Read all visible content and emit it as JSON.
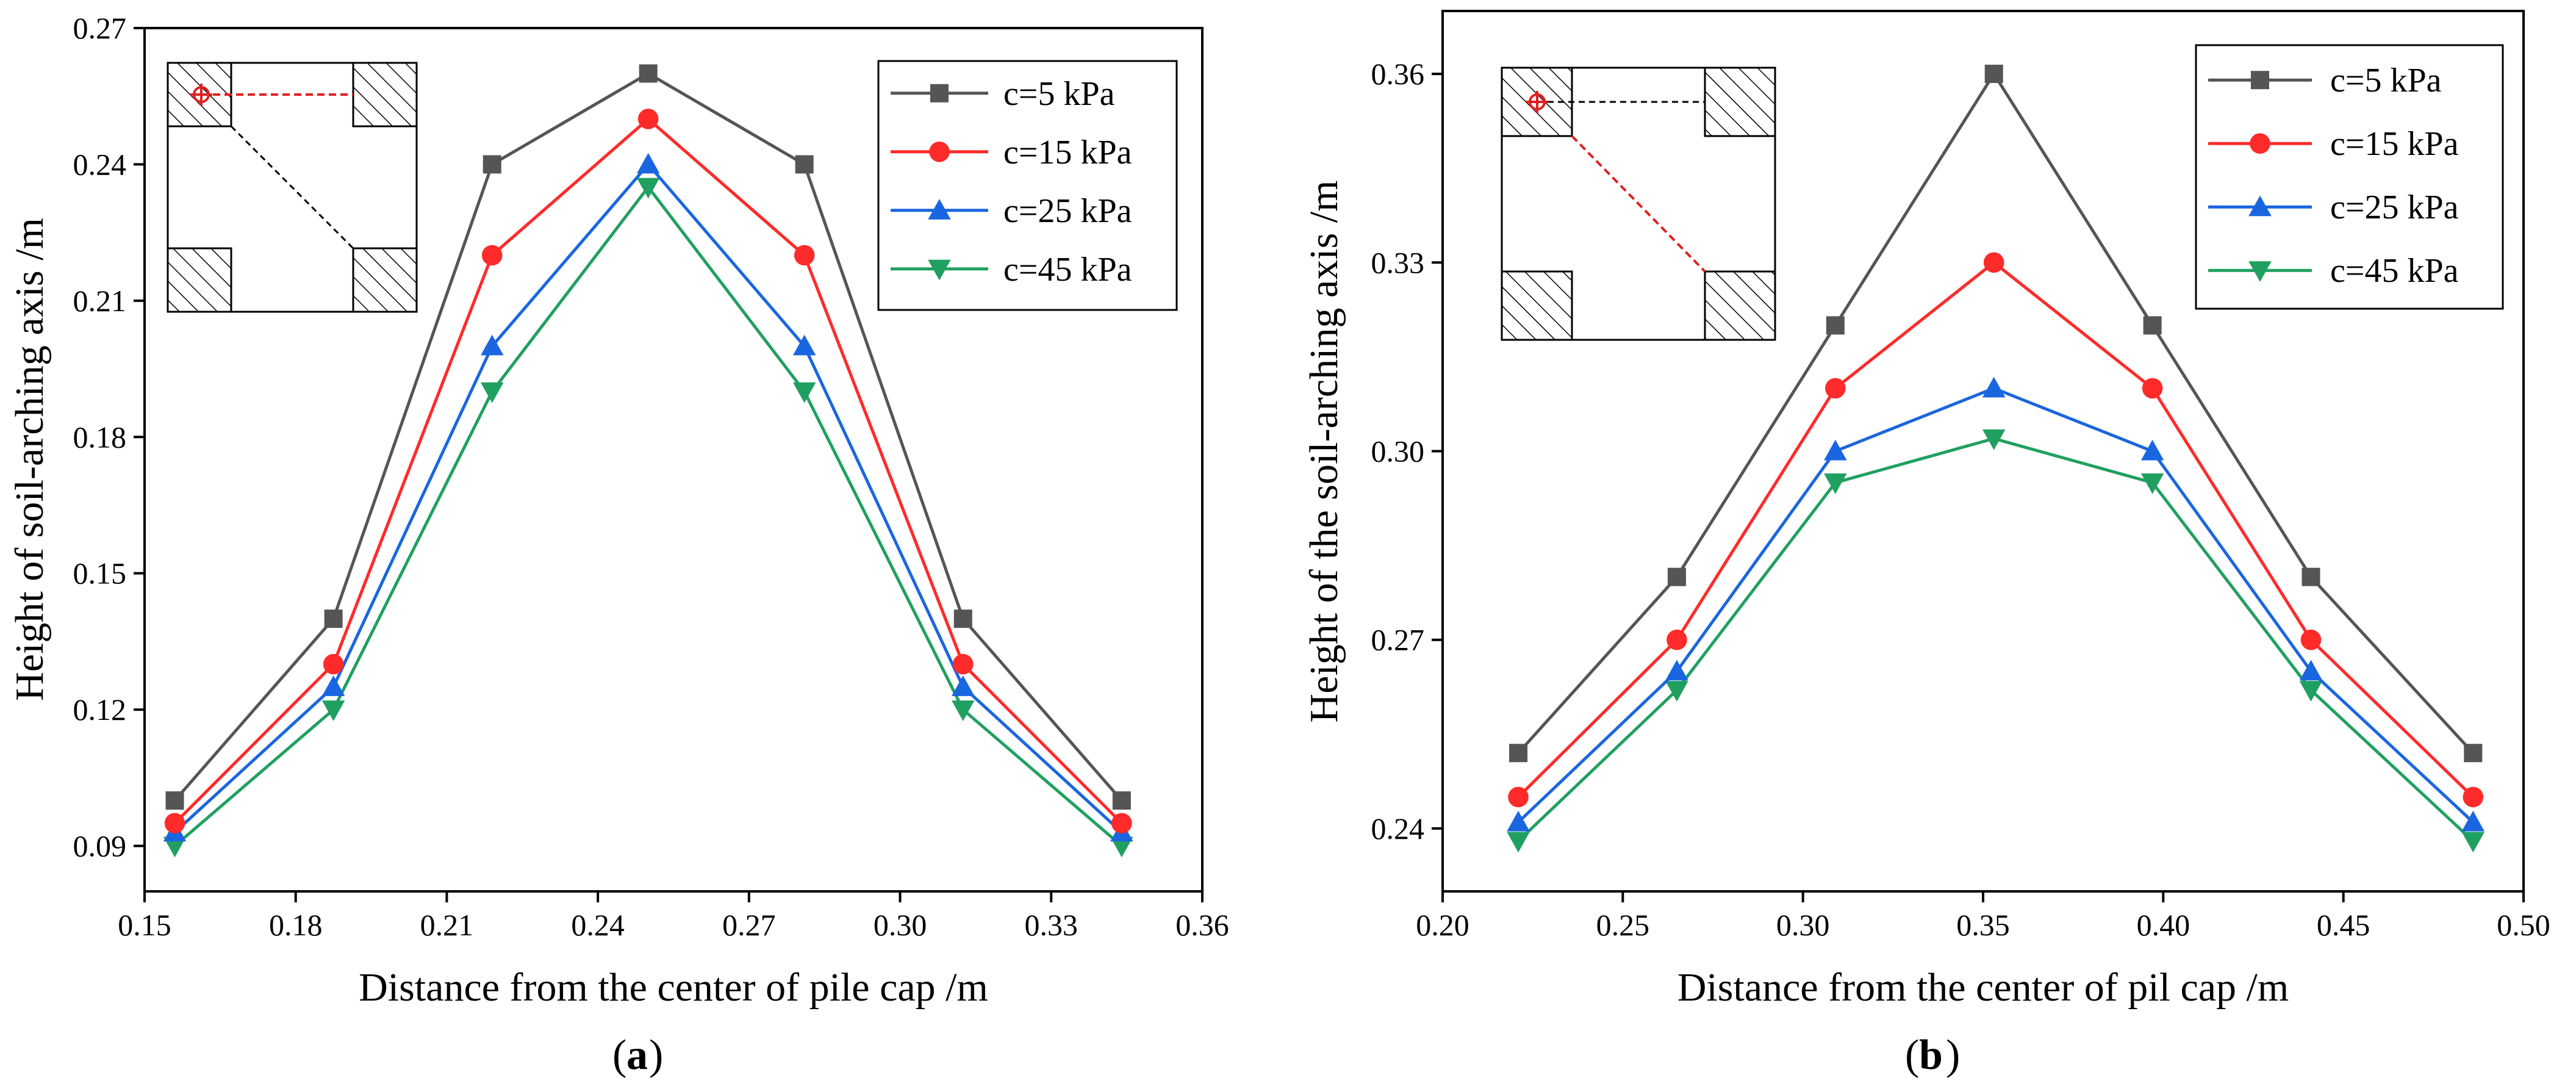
{
  "colors": {
    "c5": "#555555",
    "c15": "#ff2a2a",
    "c25": "#1a66e0",
    "c45": "#20a060",
    "frame": "#000000"
  },
  "chart_data": [
    {
      "type": "line",
      "panel_label": "a",
      "xlabel": "Distance from the center of pile cap /m",
      "ylabel": "Height of soil-arching axis /m",
      "xlim": [
        0.15,
        0.36
      ],
      "ylim": [
        0.08,
        0.27
      ],
      "xticks": [
        0.15,
        0.18,
        0.21,
        0.24,
        0.27,
        0.3,
        0.33,
        0.36
      ],
      "xtick_labels": [
        "0.15",
        "0.18",
        "0.21",
        "0.24",
        "0.27",
        "0.30",
        "0.33",
        "0.36"
      ],
      "yticks": [
        0.09,
        0.12,
        0.15,
        0.18,
        0.21,
        0.24,
        0.27
      ],
      "ytick_labels": [
        "0.09",
        "0.12",
        "0.15",
        "0.18",
        "0.21",
        "0.24",
        "0.27"
      ],
      "legend_position": "top-right",
      "inset_position": "top-left",
      "x": [
        0.156,
        0.1875,
        0.219,
        0.25,
        0.281,
        0.3125,
        0.344
      ],
      "series": [
        {
          "name": "c=5 kPa",
          "marker": "square",
          "color_key": "c5",
          "values": [
            0.1,
            0.14,
            0.24,
            0.26,
            0.24,
            0.14,
            0.1
          ]
        },
        {
          "name": "c=15 kPa",
          "marker": "circle",
          "color_key": "c15",
          "values": [
            0.095,
            0.13,
            0.22,
            0.25,
            0.22,
            0.13,
            0.095
          ]
        },
        {
          "name": "c=25 kPa",
          "marker": "triangle",
          "color_key": "c25",
          "values": [
            0.093,
            0.125,
            0.2,
            0.24,
            0.2,
            0.125,
            0.093
          ]
        },
        {
          "name": "c=45 kPa",
          "marker": "tri-down",
          "color_key": "c45",
          "values": [
            0.09,
            0.12,
            0.19,
            0.235,
            0.19,
            0.12,
            0.09
          ]
        }
      ]
    },
    {
      "type": "line",
      "panel_label": "b",
      "xlabel": "Distance from the center of pil cap /m",
      "ylabel": "Height of the soil-arching axis /m",
      "xlim": [
        0.2,
        0.5
      ],
      "ylim": [
        0.23,
        0.37
      ],
      "xticks": [
        0.2,
        0.25,
        0.3,
        0.35,
        0.4,
        0.45,
        0.5
      ],
      "xtick_labels": [
        "0.20",
        "0.25",
        "0.30",
        "0.35",
        "0.40",
        "0.45",
        "0.50"
      ],
      "yticks": [
        0.24,
        0.27,
        0.3,
        0.33,
        0.36
      ],
      "ytick_labels": [
        "0.24",
        "0.27",
        "0.30",
        "0.33",
        "0.36"
      ],
      "legend_position": "top-right",
      "inset_position": "top-left",
      "x": [
        0.221,
        0.265,
        0.309,
        0.353,
        0.397,
        0.441,
        0.486
      ],
      "series": [
        {
          "name": "c=5 kPa",
          "marker": "square",
          "color_key": "c5",
          "values": [
            0.252,
            0.28,
            0.32,
            0.36,
            0.32,
            0.28,
            0.252
          ]
        },
        {
          "name": "c=15 kPa",
          "marker": "circle",
          "color_key": "c15",
          "values": [
            0.245,
            0.27,
            0.31,
            0.33,
            0.31,
            0.27,
            0.245
          ]
        },
        {
          "name": "c=25 kPa",
          "marker": "triangle",
          "color_key": "c25",
          "values": [
            0.241,
            0.265,
            0.3,
            0.31,
            0.3,
            0.265,
            0.241
          ]
        },
        {
          "name": "c=45 kPa",
          "marker": "tri-down",
          "color_key": "c45",
          "values": [
            0.238,
            0.262,
            0.295,
            0.302,
            0.295,
            0.262,
            0.238
          ]
        }
      ]
    }
  ]
}
